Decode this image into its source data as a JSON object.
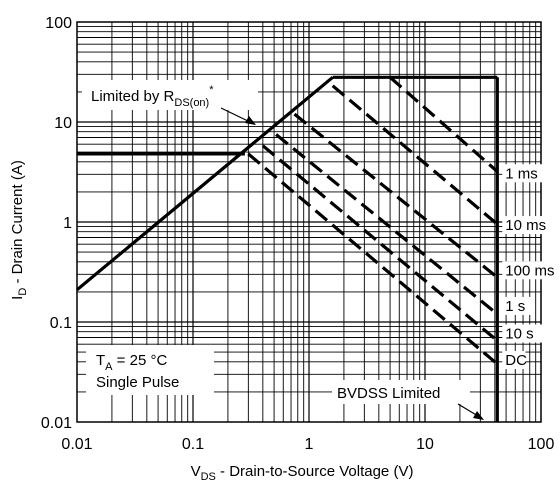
{
  "chart_data": {
    "type": "line",
    "x_scale": "log",
    "y_scale": "log",
    "xlim": [
      0.01,
      100
    ],
    "ylim": [
      0.01,
      100
    ],
    "grid": true,
    "xlabel": "V",
    "xlabel_sub": "DS",
    "xlabel_rest": " - Drain-to-Source Voltage (V)",
    "ylabel": "I",
    "ylabel_sub": "D",
    "ylabel_rest": " - Drain Current (A)",
    "x_ticks": [
      {
        "value": 0.01,
        "label": "0.01"
      },
      {
        "value": 0.1,
        "label": "0.1"
      },
      {
        "value": 1,
        "label": "1"
      },
      {
        "value": 10,
        "label": "10"
      },
      {
        "value": 100,
        "label": "100"
      }
    ],
    "y_ticks": [
      {
        "value": 0.01,
        "label": "0.01"
      },
      {
        "value": 0.1,
        "label": "0.1"
      },
      {
        "value": 1,
        "label": "1"
      },
      {
        "value": 10,
        "label": "10"
      },
      {
        "value": 100,
        "label": "100"
      }
    ],
    "boundary": {
      "rds_on_limit": [
        [
          0.01,
          0.21
        ],
        [
          1.6,
          28
        ]
      ],
      "current_limit": [
        [
          1.6,
          28
        ],
        [
          42,
          28
        ]
      ],
      "bvdss_limit": [
        [
          42,
          28
        ],
        [
          42,
          0.01
        ]
      ],
      "low_current_line": [
        [
          0.01,
          4.8
        ],
        [
          0.28,
          4.8
        ]
      ]
    },
    "series": [
      {
        "name": "1 ms",
        "points": [
          [
            5,
            28
          ],
          [
            42,
            3.2
          ]
        ]
      },
      {
        "name": "10 ms",
        "points": [
          [
            1.6,
            23
          ],
          [
            42,
            0.95
          ]
        ]
      },
      {
        "name": "100 ms",
        "points": [
          [
            0.75,
            12
          ],
          [
            42,
            0.28
          ]
        ]
      },
      {
        "name": "1 s",
        "points": [
          [
            0.52,
            7.5
          ],
          [
            42,
            0.12
          ]
        ]
      },
      {
        "name": "10 s",
        "points": [
          [
            0.4,
            5.8
          ],
          [
            42,
            0.065
          ]
        ]
      },
      {
        "name": "DC",
        "points": [
          [
            0.3,
            4.8
          ],
          [
            42,
            0.038
          ]
        ]
      }
    ],
    "series_label_y": [
      2.8,
      0.85,
      0.3,
      0.132,
      0.07,
      0.038
    ],
    "annotations": {
      "rds_label": "Limited by R",
      "rds_sub": "DS(on)",
      "rds_sup": "*",
      "ta_label": "T",
      "ta_sub": "A",
      "ta_rest": " = 25 °C",
      "pulse_label": "Single Pulse",
      "bvdss_label": "BVDSS Limited"
    }
  }
}
